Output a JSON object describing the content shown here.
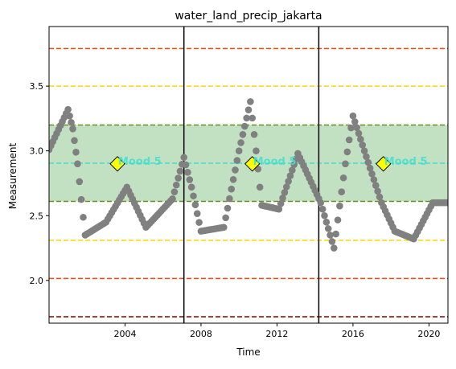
{
  "chart_data": {
    "type": "scatter",
    "title": "water_land_precip_jakarta",
    "xlabel": "Time",
    "ylabel": "Measurement",
    "xlim": [
      2000.0,
      2021.0
    ],
    "ylim": [
      1.67,
      3.96
    ],
    "x_ticks": [
      2004,
      2008,
      2012,
      2016,
      2020
    ],
    "y_ticks": [
      2.0,
      2.5,
      3.0,
      3.5
    ],
    "grid": false,
    "colors": {
      "points": "#808080",
      "band_fill": "#c2e0c2",
      "band_edge": "#6b8e23",
      "mean_line": "#40e0d0",
      "gold_line": "#ffd700",
      "orange_line": "#ff4500",
      "darkred_line": "#8b0000",
      "marker": "#ffff00",
      "annotation_text": "#40e0d0"
    },
    "band": {
      "low": 2.61,
      "high": 3.2
    },
    "horizontal_lines": [
      {
        "y": 3.79,
        "style": "orange_line"
      },
      {
        "y": 3.5,
        "style": "gold_line"
      },
      {
        "y": 3.2,
        "style": "band_edge"
      },
      {
        "y": 2.905,
        "style": "mean_line"
      },
      {
        "y": 2.61,
        "style": "band_edge"
      },
      {
        "y": 2.31,
        "style": "gold_line"
      },
      {
        "y": 2.015,
        "style": "orange_line"
      },
      {
        "y": 1.72,
        "style": "darkred_line"
      }
    ],
    "vertical_lines": [
      2007.1,
      2014.2
    ],
    "annotations": [
      {
        "x": 2003.6,
        "y": 2.9,
        "label": "Mood 5"
      },
      {
        "x": 2010.7,
        "y": 2.9,
        "label": "Mood 5"
      },
      {
        "x": 2017.6,
        "y": 2.9,
        "label": "Mood 5"
      }
    ],
    "knots": [
      [
        2000.0,
        3.01
      ],
      [
        2001.0,
        3.32
      ],
      [
        2001.25,
        3.17
      ],
      [
        2001.5,
        2.9
      ],
      [
        2001.9,
        2.35
      ],
      [
        2003.0,
        2.45
      ],
      [
        2004.1,
        2.72
      ],
      [
        2005.1,
        2.41
      ],
      [
        2006.5,
        2.63
      ],
      [
        2007.1,
        2.95
      ],
      [
        2007.5,
        2.72
      ],
      [
        2008.0,
        2.38
      ],
      [
        2009.2,
        2.41
      ],
      [
        2010.0,
        3.0
      ],
      [
        2010.6,
        3.38
      ],
      [
        2010.9,
        3.0
      ],
      [
        2011.2,
        2.58
      ],
      [
        2012.1,
        2.55
      ],
      [
        2013.1,
        2.98
      ],
      [
        2014.3,
        2.6
      ],
      [
        2015.0,
        2.25
      ],
      [
        2015.6,
        2.9
      ],
      [
        2016.0,
        3.27
      ],
      [
        2016.6,
        3.0
      ],
      [
        2017.5,
        2.6
      ],
      [
        2018.2,
        2.38
      ],
      [
        2019.2,
        2.32
      ],
      [
        2020.2,
        2.6
      ],
      [
        2021.0,
        2.6
      ]
    ]
  }
}
